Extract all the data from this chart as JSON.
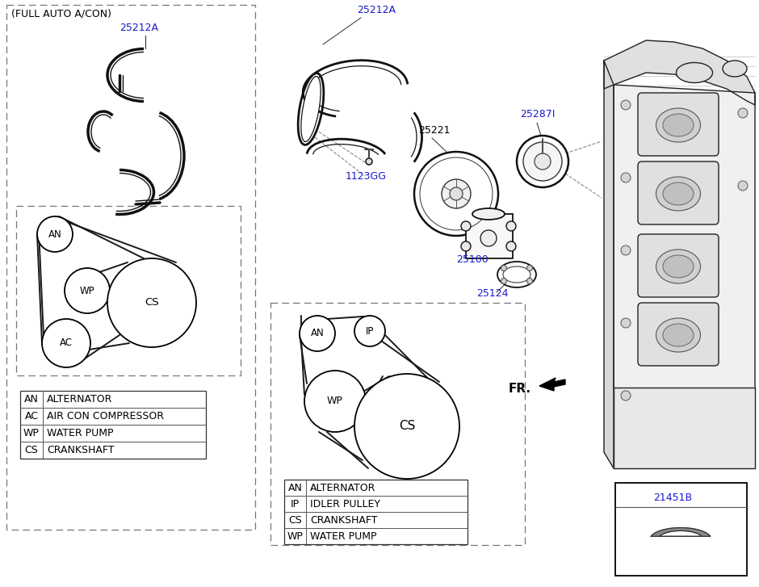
{
  "bg_color": "#ffffff",
  "line_color": "#000000",
  "blue_color": "#1a1acc",
  "title_left": "(FULL AUTO A/CON)",
  "legend_left": [
    [
      "AN",
      "ALTERNATOR"
    ],
    [
      "AC",
      "AIR CON COMPRESSOR"
    ],
    [
      "WP",
      "WATER PUMP"
    ],
    [
      "CS",
      "CRANKSHAFT"
    ]
  ],
  "legend_right": [
    [
      "AN",
      "ALTERNATOR"
    ],
    [
      "IP",
      "IDLER PULLEY"
    ],
    [
      "CS",
      "CRANKSHAFT"
    ],
    [
      "WP",
      "WATER PUMP"
    ]
  ],
  "fr_label": "FR.",
  "figsize": [
    9.4,
    7.27
  ],
  "dpi": 100
}
